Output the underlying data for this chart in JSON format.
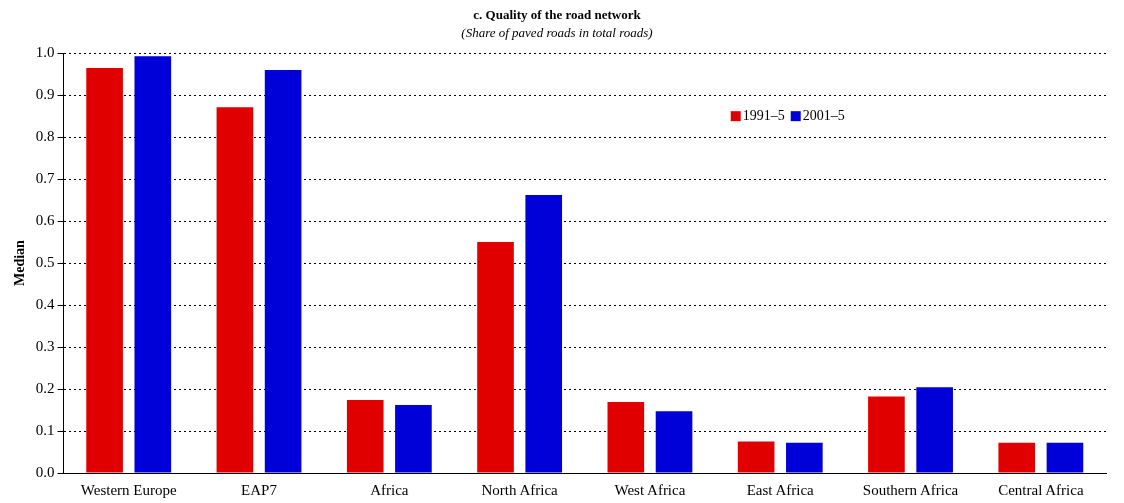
{
  "chart_data": {
    "type": "bar",
    "title": "c. Quality of the road network",
    "subtitle": "(Share of paved roads in total roads)",
    "ylabel": "Median",
    "categories": [
      "Western Europe",
      "EAP7",
      "Africa",
      "North Africa",
      "West Africa",
      "East Africa",
      "Southern Africa",
      "Central Africa"
    ],
    "series": [
      {
        "name": "1991–5",
        "color": "#e00000",
        "values": [
          0.965,
          0.871,
          0.174,
          0.55,
          0.169,
          0.075,
          0.182,
          0.072
        ]
      },
      {
        "name": "2001–5",
        "color": "#0000d8",
        "values": [
          0.993,
          0.96,
          0.162,
          0.662,
          0.147,
          0.072,
          0.204,
          0.072
        ]
      }
    ],
    "ylim": [
      0,
      1
    ],
    "yticks": [
      {
        "value": 0,
        "label": "0.0"
      },
      0.1,
      0.2,
      0.3,
      0.4,
      0.5,
      0.6,
      0.7,
      0.8,
      0.9,
      {
        "value": 1,
        "label": "1.0"
      }
    ],
    "grid": "y",
    "legend": "top right"
  }
}
